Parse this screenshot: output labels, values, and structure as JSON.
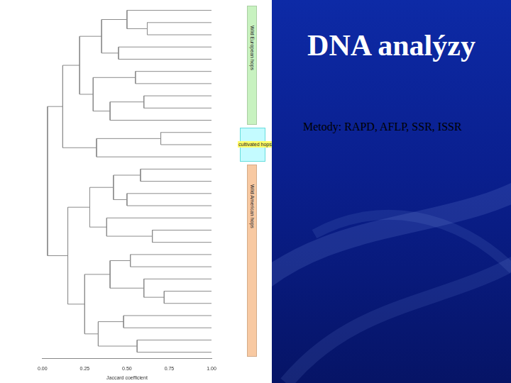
{
  "title": "DNA analýzy",
  "subtitle": "Metody: RAPD, AFLP, SSR, ISSR",
  "chart_data": {
    "type": "dendrogram",
    "x_label": "Jaccard coefficient",
    "xlim": [
      0,
      1
    ],
    "xticks": [
      {
        "value": 0,
        "label": "0.00"
      },
      {
        "value": 0.25,
        "label": "0.25"
      },
      {
        "value": 0.5,
        "label": "0.50"
      },
      {
        "value": 0.75,
        "label": "0.75"
      },
      {
        "value": 1,
        "label": "1.00"
      }
    ],
    "tick_labels": "x",
    "grid": false,
    "color": "#8c8c8c",
    "tree": {
      "height": 0.03,
      "children": [
        {
          "height": 0.12,
          "children": [
            {
              "height": 0.22,
              "group": "Wild European hops",
              "color": "#c8f2c0",
              "children": [
                {
                  "height": 0.35,
                  "children": [
                    {
                      "height": 0.5,
                      "children": [
                        null,
                        {
                          "height": 0.62,
                          "children": [
                            null,
                            null
                          ]
                        }
                      ]
                    },
                    {
                      "height": 0.45,
                      "children": [
                        null,
                        null
                      ]
                    }
                  ]
                },
                {
                  "height": 0.3,
                  "children": [
                    {
                      "height": 0.55,
                      "children": [
                        null,
                        null
                      ]
                    },
                    {
                      "height": 0.4,
                      "children": [
                        {
                          "height": 0.6,
                          "children": [
                            null,
                            null
                          ]
                        },
                        null
                      ]
                    }
                  ]
                }
              ]
            },
            {
              "height": 0.32,
              "group": "cultivated hops",
              "color": "#c4fbff",
              "children": [
                {
                  "height": 0.7,
                  "children": [
                    null,
                    null
                  ]
                },
                null
              ]
            }
          ]
        },
        {
          "height": 0.15,
          "group": "Wild American hops",
          "color": "#f8c9a2",
          "children": [
            {
              "height": 0.28,
              "children": [
                {
                  "height": 0.42,
                  "children": [
                    {
                      "height": 0.58,
                      "children": [
                        null,
                        null
                      ]
                    },
                    {
                      "height": 0.5,
                      "children": [
                        null,
                        null
                      ]
                    }
                  ]
                },
                {
                  "height": 0.38,
                  "children": [
                    null,
                    {
                      "height": 0.65,
                      "children": [
                        null,
                        null
                      ]
                    }
                  ]
                }
              ]
            },
            {
              "height": 0.25,
              "children": [
                {
                  "height": 0.4,
                  "children": [
                    {
                      "height": 0.52,
                      "children": [
                        null,
                        null
                      ]
                    },
                    {
                      "height": 0.6,
                      "children": [
                        null,
                        {
                          "height": 0.72,
                          "children": [
                            null,
                            null
                          ]
                        }
                      ]
                    }
                  ]
                },
                {
                  "height": 0.33,
                  "children": [
                    {
                      "height": 0.48,
                      "children": [
                        null,
                        null
                      ]
                    },
                    {
                      "height": 0.56,
                      "children": [
                        null,
                        null
                      ]
                    }
                  ]
                }
              ]
            }
          ]
        }
      ]
    }
  }
}
